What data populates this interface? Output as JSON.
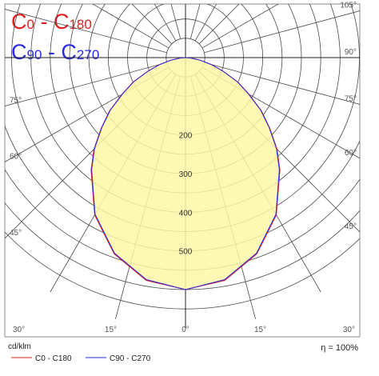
{
  "header": {
    "line1": {
      "a": "C",
      "a_sub": "0",
      "dash": " - ",
      "b": "C",
      "b_sub": "180",
      "color": "#e21d1d"
    },
    "line2": {
      "a": "C",
      "a_sub": "90",
      "dash": " - ",
      "b": "C",
      "b_sub": "270",
      "color": "#2a2ae0"
    }
  },
  "chart_data": {
    "type": "polar",
    "unit": "cd/klm",
    "efficiency": "η = 100%",
    "radial_ticks": [
      200,
      300,
      400,
      500
    ],
    "r_max": 600,
    "angle_labels_left": [
      "30°",
      "45°",
      "60°",
      "75°"
    ],
    "angle_labels_right": [
      "30°",
      "45°",
      "60°",
      "75°",
      "90°",
      "105°"
    ],
    "bottom_labels": [
      "15°",
      "0°",
      "15°"
    ],
    "fill_color": "#fdf7a7",
    "series": [
      {
        "name": "C0 - C180",
        "color": "#e21d1d",
        "angles": [
          0,
          10,
          20,
          30,
          40,
          45,
          50,
          55,
          60,
          65,
          70,
          75,
          80,
          85,
          90
        ],
        "values": [
          600,
          585,
          540,
          470,
          380,
          335,
          285,
          240,
          190,
          150,
          105,
          70,
          40,
          15,
          0
        ]
      },
      {
        "name": "C90 - C270",
        "color": "#2a2ae0",
        "angles": [
          0,
          10,
          20,
          30,
          40,
          45,
          50,
          55,
          60,
          65,
          70,
          75,
          80,
          85,
          90
        ],
        "values": [
          600,
          583,
          538,
          468,
          378,
          333,
          283,
          238,
          188,
          148,
          103,
          68,
          38,
          13,
          0
        ]
      }
    ]
  }
}
